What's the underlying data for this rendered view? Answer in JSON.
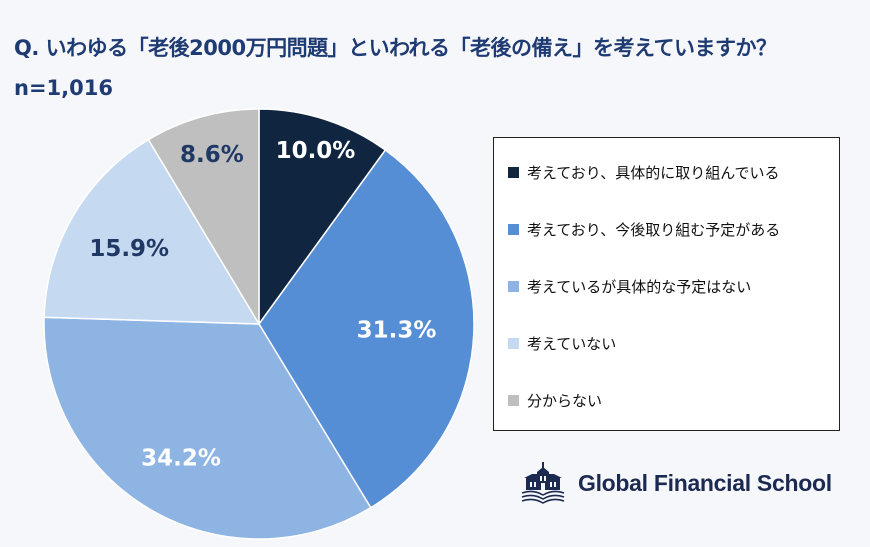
{
  "title": "Q.  いわゆる「老後2000万円問題」といわれる「老後の備え」を考えていますか？",
  "sample": "n=1,016",
  "chart_data": {
    "type": "pie",
    "start": "top",
    "direction": "clockwise",
    "categories": [
      "考えており、具体的に取り組んでいる",
      "考えており、今後取り組む予定がある",
      "考えているが具体的な予定はない",
      "考えていない",
      "分からない"
    ],
    "values": [
      10.0,
      31.3,
      34.2,
      15.9,
      8.6
    ],
    "labels": [
      "10.0%",
      "31.3%",
      "34.2%",
      "15.9%",
      "8.6%"
    ],
    "colors": [
      "#0f2540",
      "#558ed5",
      "#8db4e2",
      "#c5d9f1",
      "#bfbfbf"
    ],
    "label_colors": [
      "#ffffff",
      "#ffffff",
      "#ffffff",
      "#1f3864",
      "#1f3864"
    ],
    "legend": "right"
  },
  "logo": {
    "text": "Global Financial School",
    "color": "#1c2a52"
  }
}
